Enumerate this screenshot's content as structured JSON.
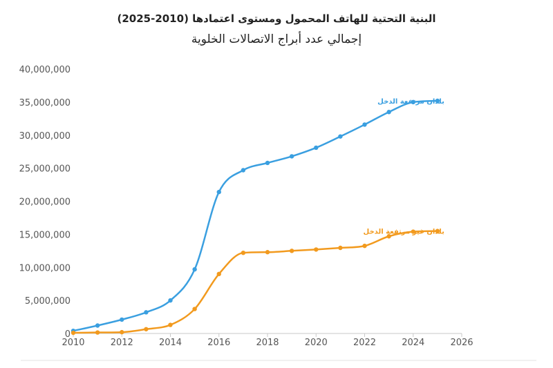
{
  "chart_data": {
    "type": "line",
    "title": "البنية التحتية للهاتف المحمول ومستوى اعتمادها (2010-2025)",
    "subtitle": "إجمالي عدد أبراج الاتصالات الخلوية",
    "xlim": [
      2010,
      2026
    ],
    "ylim": [
      0,
      40000000
    ],
    "x_ticks": [
      2010,
      2012,
      2014,
      2016,
      2018,
      2020,
      2022,
      2024,
      2026
    ],
    "x_tick_labels": [
      "2010",
      "2012",
      "2014",
      "2016",
      "2018",
      "2020",
      "2022",
      "2024",
      "2026"
    ],
    "y_ticks": [
      0,
      5000000,
      10000000,
      15000000,
      20000000,
      25000000,
      30000000,
      35000000,
      40000000
    ],
    "y_tick_labels": [
      "0",
      "5,000,000",
      "10,000,000",
      "15,000,000",
      "20,000,000",
      "25,000,000",
      "30,000,000",
      "35,000,000",
      "40,000,000"
    ],
    "grid": false,
    "x": [
      2010,
      2011,
      2012,
      2013,
      2014,
      2015,
      2016,
      2017,
      2018,
      2019,
      2020,
      2021,
      2022,
      2023,
      2024,
      2025
    ],
    "series": [
      {
        "name": "بلدان مرتفعة الدخل",
        "color": "#3a9fe0",
        "values": [
          400000,
          1200000,
          2100000,
          3200000,
          5000000,
          9700000,
          21400000,
          24700000,
          25800000,
          26800000,
          28100000,
          29800000,
          31600000,
          33500000,
          35000000,
          35200000
        ]
      },
      {
        "name": "بلدان غير مرتفعة الدخل",
        "color": "#f29a1e",
        "values": [
          100000,
          150000,
          200000,
          650000,
          1300000,
          3700000,
          9000000,
          12200000,
          12300000,
          12500000,
          12700000,
          12950000,
          13250000,
          14700000,
          15400000,
          15500000
        ]
      }
    ]
  },
  "colors": {
    "axis": "#c8c8c8",
    "tick_text": "#555555",
    "title_text": "#222222"
  }
}
